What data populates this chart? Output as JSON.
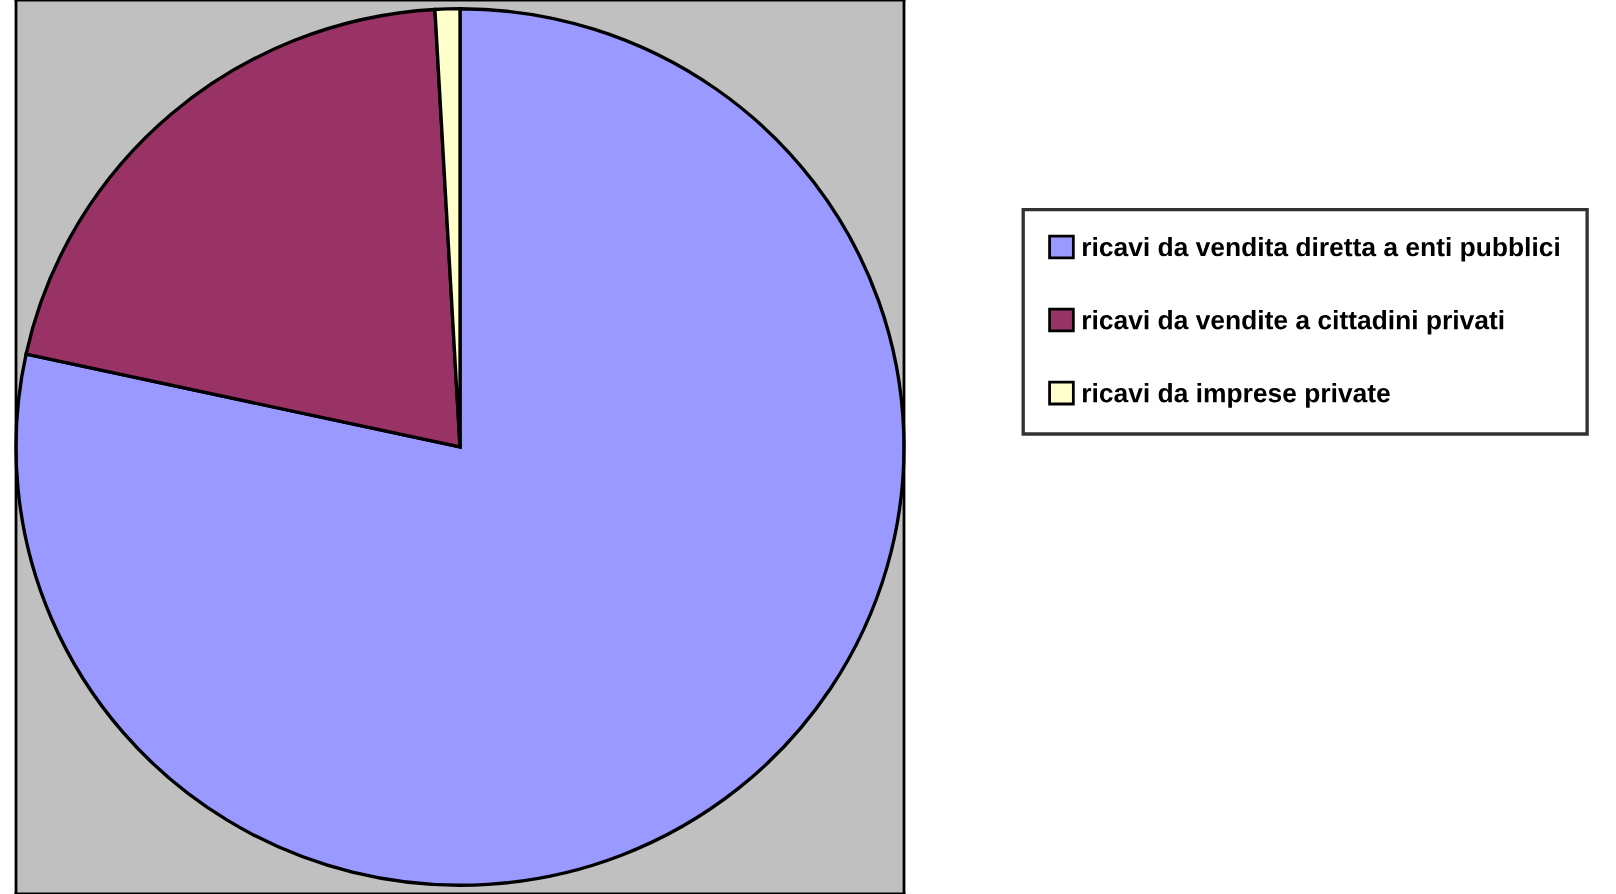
{
  "chart_data": {
    "type": "pie",
    "categories": [
      "ricavi da vendita diretta a enti pubblici",
      "ricavi da vendite a cittadini privati",
      "ricavi da imprese private"
    ],
    "values": [
      78.4,
      20.7,
      0.9
    ],
    "colors": [
      "#9999ff",
      "#993366",
      "#ffffcc"
    ],
    "legend": "right"
  }
}
